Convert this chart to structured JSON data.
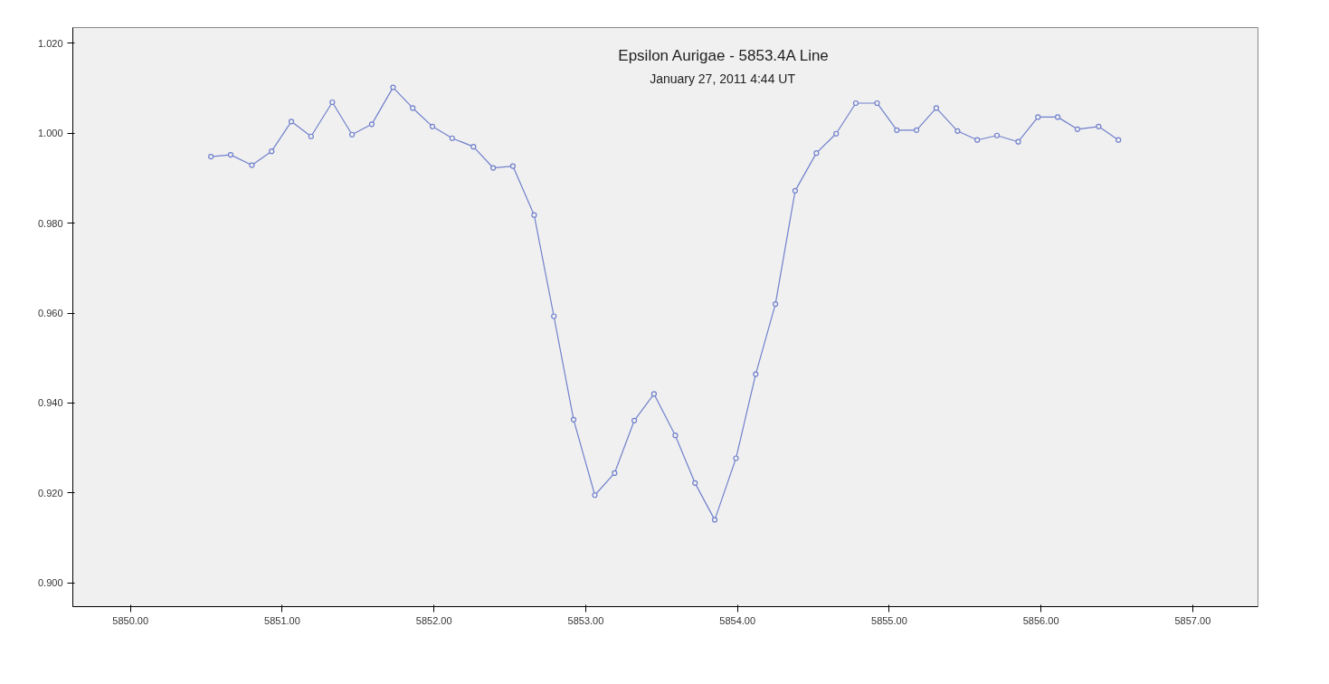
{
  "chart_data": {
    "type": "line",
    "title": "Epsilon Aurigae - 5853.4A Line",
    "subtitle": "January 27, 2011  4:44 UT",
    "x": [
      5850.53,
      5850.66,
      5850.8,
      5850.93,
      5851.06,
      5851.19,
      5851.33,
      5851.46,
      5851.59,
      5851.73,
      5851.86,
      5851.99,
      5852.12,
      5852.26,
      5852.39,
      5852.52,
      5852.66,
      5852.79,
      5852.92,
      5853.06,
      5853.19,
      5853.32,
      5853.45,
      5853.59,
      5853.72,
      5853.85,
      5853.99,
      5854.12,
      5854.25,
      5854.38,
      5854.52,
      5854.65,
      5854.78,
      5854.92,
      5855.05,
      5855.18,
      5855.31,
      5855.45,
      5855.58,
      5855.71,
      5855.85,
      5855.98,
      5856.11,
      5856.24,
      5856.38,
      5856.51
    ],
    "series": [
      {
        "color": "#7080cc",
        "values": [
          0.9948,
          0.9952,
          0.9929,
          0.996,
          1.0026,
          0.9993,
          1.0069,
          0.9997,
          1.002,
          1.0102,
          1.0056,
          1.0015,
          0.9989,
          0.997,
          0.9923,
          0.9927,
          0.9818,
          0.9593,
          0.9363,
          0.9195,
          0.9244,
          0.9361,
          0.942,
          0.9328,
          0.9222,
          0.914,
          0.9277,
          0.9464,
          0.962,
          0.9872,
          0.9956,
          0.9999,
          1.0067,
          1.0067,
          1.0007,
          1.0007,
          1.0056,
          1.0005,
          0.9985,
          0.9995,
          0.9981,
          1.0036,
          1.0036,
          1.0009,
          1.0015,
          0.9985
        ]
      }
    ],
    "xlim": [
      5849.62,
      5857.43
    ],
    "ylim": [
      0.8947,
      1.0235
    ],
    "xticks": [
      {
        "value": 5850,
        "label": "5850.00"
      },
      {
        "value": 5851,
        "label": "5851.00"
      },
      {
        "value": 5852,
        "label": "5852.00"
      },
      {
        "value": 5853,
        "label": "5853.00"
      },
      {
        "value": 5854,
        "label": "5854.00"
      },
      {
        "value": 5855,
        "label": "5855.00"
      },
      {
        "value": 5856,
        "label": "5856.00"
      },
      {
        "value": 5857,
        "label": "5857.00"
      }
    ],
    "yticks": [
      {
        "value": 0.9,
        "label": "0.900"
      },
      {
        "value": 0.92,
        "label": "0.920"
      },
      {
        "value": 0.94,
        "label": "0.940"
      },
      {
        "value": 0.96,
        "label": "0.960"
      },
      {
        "value": 0.98,
        "label": "0.980"
      },
      {
        "value": 1.0,
        "label": "1.000"
      },
      {
        "value": 1.02,
        "label": "1.020"
      }
    ],
    "grid": false,
    "marker": "circle",
    "line_style": "solid"
  }
}
